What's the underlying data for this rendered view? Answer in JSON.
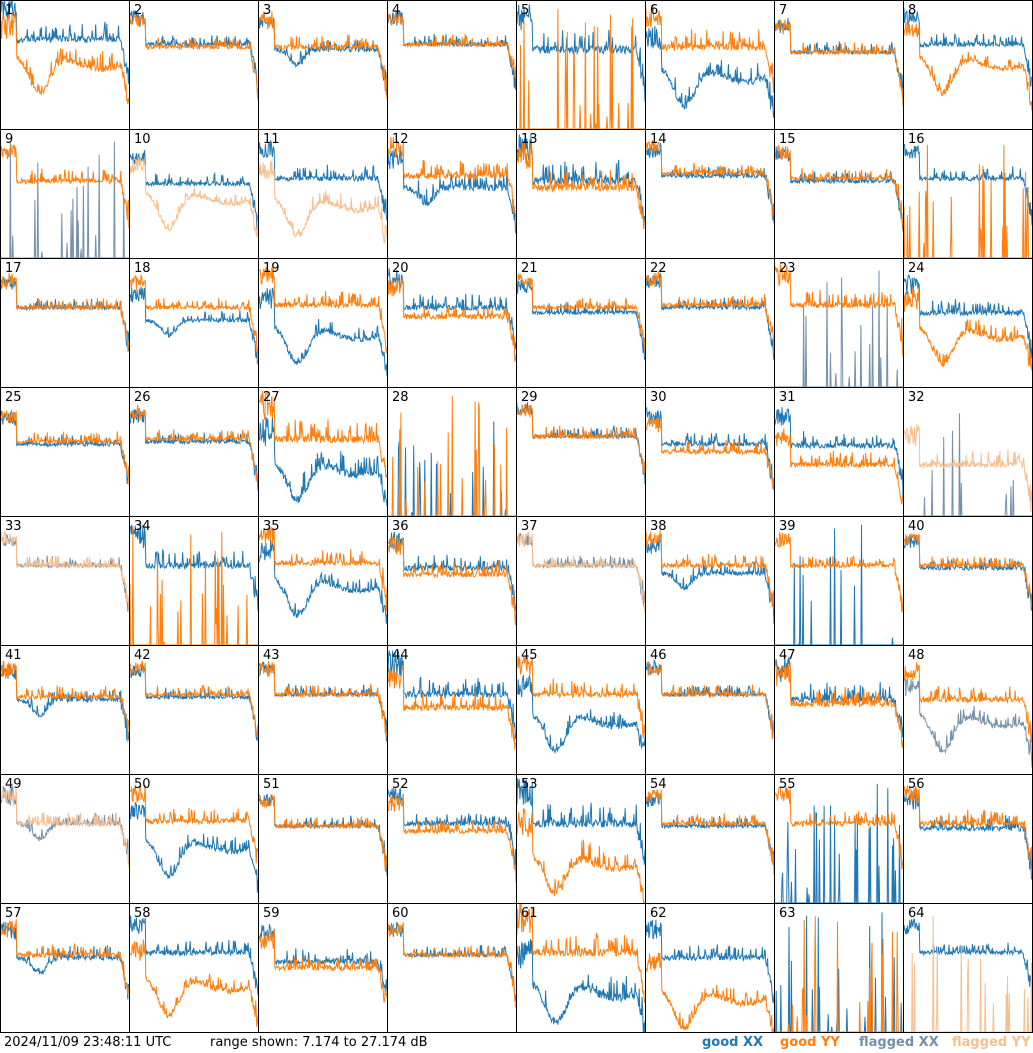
{
  "footer": {
    "timestamp": "2024/11/09 23:48:11 UTC",
    "range": "range shown: 7.174 to 27.174 dB"
  },
  "legend": [
    {
      "label": "good XX",
      "color": "#1f77b4"
    },
    {
      "label": "good YY",
      "color": "#ff7f0e"
    },
    {
      "label": "flagged XX",
      "color": "#7590ab"
    },
    {
      "label": "flagged YY",
      "color": "#f7bf8e"
    }
  ],
  "chart_data": {
    "type": "line",
    "y_range_db": [
      7.174,
      27.174
    ],
    "grid": "8x8",
    "series_types": [
      "XX",
      "YY"
    ],
    "panels": [
      {
        "id": "1",
        "xx": "good",
        "yy": "good",
        "xx_shape": "flat",
        "yy_shape": "sag",
        "xx_level": 0.7,
        "yy_level": 0.55,
        "noise": 1.0
      },
      {
        "id": "2",
        "xx": "good",
        "yy": "good",
        "xx_shape": "flat",
        "yy_shape": "flat",
        "xx_level": 0.66,
        "yy_level": 0.64,
        "noise": 0.6
      },
      {
        "id": "3",
        "xx": "good",
        "yy": "good",
        "xx_shape": "dip",
        "yy_shape": "flat",
        "xx_level": 0.62,
        "yy_level": 0.64,
        "noise": 0.7
      },
      {
        "id": "4",
        "xx": "good",
        "yy": "good",
        "xx_shape": "flat",
        "yy_shape": "flat",
        "xx_level": 0.66,
        "yy_level": 0.66,
        "noise": 0.6
      },
      {
        "id": "5",
        "xx": "good",
        "yy": "good",
        "xx_shape": "flat",
        "yy_shape": "dead",
        "xx_level": 0.62,
        "yy_level": 0.0,
        "noise": 1.2
      },
      {
        "id": "6",
        "xx": "good",
        "yy": "good",
        "xx_shape": "sag",
        "yy_shape": "flat",
        "xx_level": 0.45,
        "yy_level": 0.64,
        "noise": 1.0
      },
      {
        "id": "7",
        "xx": "good",
        "yy": "good",
        "xx_shape": "flat",
        "yy_shape": "flat",
        "xx_level": 0.6,
        "yy_level": 0.6,
        "noise": 0.6
      },
      {
        "id": "8",
        "xx": "good",
        "yy": "good",
        "xx_shape": "flat",
        "yy_shape": "sag",
        "xx_level": 0.66,
        "yy_level": 0.55,
        "noise": 0.7
      },
      {
        "id": "9",
        "xx": "flagged",
        "yy": "good",
        "xx_shape": "dead",
        "yy_shape": "flat",
        "xx_level": 0.0,
        "yy_level": 0.6,
        "noise": 0.8
      },
      {
        "id": "10",
        "xx": "good",
        "yy": "flagged",
        "xx_shape": "flat",
        "yy_shape": "sag",
        "xx_level": 0.58,
        "yy_level": 0.5,
        "noise": 0.6
      },
      {
        "id": "11",
        "xx": "good",
        "yy": "flagged",
        "xx_shape": "flat",
        "yy_shape": "sag",
        "xx_level": 0.62,
        "yy_level": 0.45,
        "noise": 0.8
      },
      {
        "id": "12",
        "xx": "good",
        "yy": "good",
        "xx_shape": "dip",
        "yy_shape": "flat",
        "xx_level": 0.55,
        "yy_level": 0.64,
        "noise": 0.9
      },
      {
        "id": "13",
        "xx": "good",
        "yy": "good",
        "xx_shape": "flat",
        "yy_shape": "flat",
        "xx_level": 0.6,
        "yy_level": 0.55,
        "noise": 1.2
      },
      {
        "id": "14",
        "xx": "good",
        "yy": "good",
        "xx_shape": "flat",
        "yy_shape": "flat",
        "xx_level": 0.64,
        "yy_level": 0.66,
        "noise": 0.6
      },
      {
        "id": "15",
        "xx": "good",
        "yy": "good",
        "xx_shape": "flat",
        "yy_shape": "flat",
        "xx_level": 0.6,
        "yy_level": 0.62,
        "noise": 0.6
      },
      {
        "id": "16",
        "xx": "good",
        "yy": "good",
        "xx_shape": "flat",
        "yy_shape": "dead",
        "xx_level": 0.62,
        "yy_level": 0.0,
        "noise": 0.7
      },
      {
        "id": "17",
        "xx": "good",
        "yy": "good",
        "xx_shape": "flat",
        "yy_shape": "flat",
        "xx_level": 0.62,
        "yy_level": 0.62,
        "noise": 0.6
      },
      {
        "id": "18",
        "xx": "good",
        "yy": "good",
        "xx_shape": "dip",
        "yy_shape": "flat",
        "xx_level": 0.52,
        "yy_level": 0.62,
        "noise": 0.6
      },
      {
        "id": "19",
        "xx": "good",
        "yy": "good",
        "xx_shape": "sag",
        "yy_shape": "flat",
        "xx_level": 0.45,
        "yy_level": 0.64,
        "noise": 0.8
      },
      {
        "id": "20",
        "xx": "good",
        "yy": "good",
        "xx_shape": "flat",
        "yy_shape": "flat",
        "xx_level": 0.62,
        "yy_level": 0.55,
        "noise": 0.8
      },
      {
        "id": "21",
        "xx": "good",
        "yy": "good",
        "xx_shape": "flat",
        "yy_shape": "flat",
        "xx_level": 0.58,
        "yy_level": 0.62,
        "noise": 0.6
      },
      {
        "id": "22",
        "xx": "good",
        "yy": "good",
        "xx_shape": "flat",
        "yy_shape": "flat",
        "xx_level": 0.62,
        "yy_level": 0.64,
        "noise": 0.6
      },
      {
        "id": "23",
        "xx": "flagged",
        "yy": "good",
        "xx_shape": "dead",
        "yy_shape": "flat",
        "xx_level": 0.2,
        "yy_level": 0.64,
        "noise": 0.9
      },
      {
        "id": "24",
        "xx": "good",
        "yy": "good",
        "xx_shape": "flat",
        "yy_shape": "sag",
        "xx_level": 0.58,
        "yy_level": 0.45,
        "noise": 0.8
      },
      {
        "id": "25",
        "xx": "good",
        "yy": "good",
        "xx_shape": "flat",
        "yy_shape": "flat",
        "xx_level": 0.56,
        "yy_level": 0.58,
        "noise": 0.6
      },
      {
        "id": "26",
        "xx": "good",
        "yy": "good",
        "xx_shape": "flat",
        "yy_shape": "flat",
        "xx_level": 0.58,
        "yy_level": 0.6,
        "noise": 0.6
      },
      {
        "id": "27",
        "xx": "good",
        "yy": "good",
        "xx_shape": "sag",
        "yy_shape": "flat",
        "xx_level": 0.4,
        "yy_level": 0.6,
        "noise": 1.2
      },
      {
        "id": "28",
        "xx": "good",
        "yy": "good",
        "xx_shape": "dead",
        "yy_shape": "dead",
        "xx_level": 0.0,
        "yy_level": 0.0,
        "noise": 1.0
      },
      {
        "id": "29",
        "xx": "good",
        "yy": "good",
        "xx_shape": "flat",
        "yy_shape": "flat",
        "xx_level": 0.62,
        "yy_level": 0.62,
        "noise": 0.6
      },
      {
        "id": "30",
        "xx": "good",
        "yy": "good",
        "xx_shape": "flat",
        "yy_shape": "flat",
        "xx_level": 0.56,
        "yy_level": 0.5,
        "noise": 0.7
      },
      {
        "id": "31",
        "xx": "good",
        "yy": "good",
        "xx_shape": "flat",
        "yy_shape": "flat",
        "xx_level": 0.55,
        "yy_level": 0.4,
        "noise": 0.8
      },
      {
        "id": "32",
        "xx": "flagged",
        "yy": "flagged",
        "xx_shape": "dead",
        "yy_shape": "flat",
        "xx_level": 0.0,
        "yy_level": 0.4,
        "noise": 0.9
      },
      {
        "id": "33",
        "xx": "flagged",
        "yy": "flagged",
        "xx_shape": "flat",
        "yy_shape": "flat",
        "xx_level": 0.62,
        "yy_level": 0.62,
        "noise": 0.6
      },
      {
        "id": "34",
        "xx": "good",
        "yy": "good",
        "xx_shape": "flat",
        "yy_shape": "dead",
        "xx_level": 0.62,
        "yy_level": 0.0,
        "noise": 1.0
      },
      {
        "id": "35",
        "xx": "good",
        "yy": "good",
        "xx_shape": "sag",
        "yy_shape": "flat",
        "xx_level": 0.5,
        "yy_level": 0.64,
        "noise": 0.8
      },
      {
        "id": "36",
        "xx": "good",
        "yy": "good",
        "xx_shape": "flat",
        "yy_shape": "flat",
        "xx_level": 0.6,
        "yy_level": 0.55,
        "noise": 0.8
      },
      {
        "id": "37",
        "xx": "flagged",
        "yy": "flagged",
        "xx_shape": "flat",
        "yy_shape": "flat",
        "xx_level": 0.62,
        "yy_level": 0.62,
        "noise": 0.6
      },
      {
        "id": "38",
        "xx": "good",
        "yy": "good",
        "xx_shape": "dip",
        "yy_shape": "flat",
        "xx_level": 0.56,
        "yy_level": 0.62,
        "noise": 0.7
      },
      {
        "id": "39",
        "xx": "good",
        "yy": "good",
        "xx_shape": "dead",
        "yy_shape": "flat",
        "xx_level": 0.0,
        "yy_level": 0.62,
        "noise": 0.6
      },
      {
        "id": "40",
        "xx": "good",
        "yy": "good",
        "xx_shape": "flat",
        "yy_shape": "flat",
        "xx_level": 0.6,
        "yy_level": 0.62,
        "noise": 0.6
      },
      {
        "id": "41",
        "xx": "good",
        "yy": "good",
        "xx_shape": "dip",
        "yy_shape": "flat",
        "xx_level": 0.58,
        "yy_level": 0.6,
        "noise": 0.7
      },
      {
        "id": "42",
        "xx": "good",
        "yy": "good",
        "xx_shape": "flat",
        "yy_shape": "flat",
        "xx_level": 0.6,
        "yy_level": 0.62,
        "noise": 0.6
      },
      {
        "id": "43",
        "xx": "good",
        "yy": "good",
        "xx_shape": "flat",
        "yy_shape": "flat",
        "xx_level": 0.62,
        "yy_level": 0.62,
        "noise": 0.6
      },
      {
        "id": "44",
        "xx": "good",
        "yy": "good",
        "xx_shape": "flat",
        "yy_shape": "flat",
        "xx_level": 0.62,
        "yy_level": 0.52,
        "noise": 1.0
      },
      {
        "id": "45",
        "xx": "good",
        "yy": "good",
        "xx_shape": "sag",
        "yy_shape": "flat",
        "xx_level": 0.45,
        "yy_level": 0.62,
        "noise": 0.9
      },
      {
        "id": "46",
        "xx": "good",
        "yy": "good",
        "xx_shape": "flat",
        "yy_shape": "flat",
        "xx_level": 0.62,
        "yy_level": 0.62,
        "noise": 0.6
      },
      {
        "id": "47",
        "xx": "good",
        "yy": "good",
        "xx_shape": "flat",
        "yy_shape": "flat",
        "xx_level": 0.58,
        "yy_level": 0.55,
        "noise": 1.0
      },
      {
        "id": "48",
        "xx": "flagged",
        "yy": "good",
        "xx_shape": "sag",
        "yy_shape": "flat",
        "xx_level": 0.45,
        "yy_level": 0.58,
        "noise": 0.8
      },
      {
        "id": "49",
        "xx": "flagged",
        "yy": "flagged",
        "xx_shape": "dip",
        "yy_shape": "flat",
        "xx_level": 0.62,
        "yy_level": 0.62,
        "noise": 0.7
      },
      {
        "id": "50",
        "xx": "good",
        "yy": "good",
        "xx_shape": "sag",
        "yy_shape": "flat",
        "xx_level": 0.48,
        "yy_level": 0.64,
        "noise": 0.8
      },
      {
        "id": "51",
        "xx": "good",
        "yy": "good",
        "xx_shape": "flat",
        "yy_shape": "flat",
        "xx_level": 0.6,
        "yy_level": 0.6,
        "noise": 0.6
      },
      {
        "id": "52",
        "xx": "good",
        "yy": "good",
        "xx_shape": "flat",
        "yy_shape": "flat",
        "xx_level": 0.62,
        "yy_level": 0.56,
        "noise": 0.7
      },
      {
        "id": "53",
        "xx": "good",
        "yy": "good",
        "xx_shape": "flat",
        "yy_shape": "sag",
        "xx_level": 0.62,
        "yy_level": 0.35,
        "noise": 1.2
      },
      {
        "id": "54",
        "xx": "good",
        "yy": "good",
        "xx_shape": "flat",
        "yy_shape": "flat",
        "xx_level": 0.6,
        "yy_level": 0.62,
        "noise": 0.6
      },
      {
        "id": "55",
        "xx": "good",
        "yy": "good",
        "xx_shape": "dead",
        "yy_shape": "flat",
        "xx_level": 0.1,
        "yy_level": 0.62,
        "noise": 0.8
      },
      {
        "id": "56",
        "xx": "good",
        "yy": "good",
        "xx_shape": "flat",
        "yy_shape": "flat",
        "xx_level": 0.58,
        "yy_level": 0.62,
        "noise": 0.8
      },
      {
        "id": "57",
        "xx": "good",
        "yy": "good",
        "xx_shape": "dip",
        "yy_shape": "flat",
        "xx_level": 0.58,
        "yy_level": 0.6,
        "noise": 0.7
      },
      {
        "id": "58",
        "xx": "good",
        "yy": "good",
        "xx_shape": "flat",
        "yy_shape": "sag",
        "xx_level": 0.62,
        "yy_level": 0.4,
        "noise": 0.8
      },
      {
        "id": "59",
        "xx": "good",
        "yy": "good",
        "xx_shape": "flat",
        "yy_shape": "flat",
        "xx_level": 0.55,
        "yy_level": 0.5,
        "noise": 0.8
      },
      {
        "id": "60",
        "xx": "good",
        "yy": "good",
        "xx_shape": "flat",
        "yy_shape": "flat",
        "xx_level": 0.6,
        "yy_level": 0.6,
        "noise": 0.6
      },
      {
        "id": "61",
        "xx": "good",
        "yy": "good",
        "xx_shape": "sag",
        "yy_shape": "flat",
        "xx_level": 0.35,
        "yy_level": 0.62,
        "noise": 1.2
      },
      {
        "id": "62",
        "xx": "good",
        "yy": "good",
        "xx_shape": "flat",
        "yy_shape": "sag",
        "xx_level": 0.58,
        "yy_level": 0.3,
        "noise": 0.8
      },
      {
        "id": "63",
        "xx": "good",
        "yy": "good",
        "xx_shape": "dead",
        "yy_shape": "dead",
        "xx_level": 0.0,
        "yy_level": 0.0,
        "noise": 1.0
      },
      {
        "id": "64",
        "xx": "good",
        "yy": "flagged",
        "xx_shape": "flat",
        "yy_shape": "dead",
        "xx_level": 0.62,
        "yy_level": 0.0,
        "noise": 0.6
      }
    ]
  }
}
